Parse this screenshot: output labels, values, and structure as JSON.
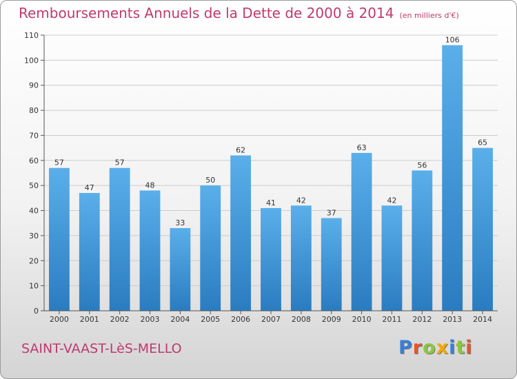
{
  "title": "Remboursements Annuels de la Dette de 2000 à 2014",
  "title_unit": "(en milliers d'€)",
  "place_name": "SAINT-VAAST-LèS-MELLO",
  "logo": {
    "text": "Proxiti",
    "letters": [
      {
        "char": "P",
        "color": "#3a7fd5"
      },
      {
        "char": "r",
        "color": "#e8542a"
      },
      {
        "char": "o",
        "color": "#8cc63f"
      },
      {
        "char": "x",
        "color": "#f3a800"
      },
      {
        "char": "i",
        "color": "#3a7fd5"
      },
      {
        "char": "t",
        "color": "#8cc63f"
      },
      {
        "char": "i",
        "color": "#e8542a"
      }
    ]
  },
  "colors": {
    "accent": "#c0396e",
    "bar_top": "#5aafea",
    "bar_bottom": "#2a7cc0",
    "grid": "#cccccc"
  },
  "chart_data": {
    "type": "bar",
    "categories": [
      "2000",
      "2001",
      "2002",
      "2003",
      "2004",
      "2005",
      "2006",
      "2007",
      "2008",
      "2009",
      "2010",
      "2011",
      "2012",
      "2013",
      "2014"
    ],
    "values": [
      57,
      47,
      57,
      48,
      33,
      50,
      62,
      41,
      42,
      37,
      63,
      42,
      56,
      106,
      65
    ],
    "ylim": [
      0,
      110
    ],
    "yticks": [
      0,
      10,
      20,
      30,
      40,
      50,
      60,
      70,
      80,
      90,
      100,
      110
    ],
    "grid": true,
    "data_labels": true
  }
}
